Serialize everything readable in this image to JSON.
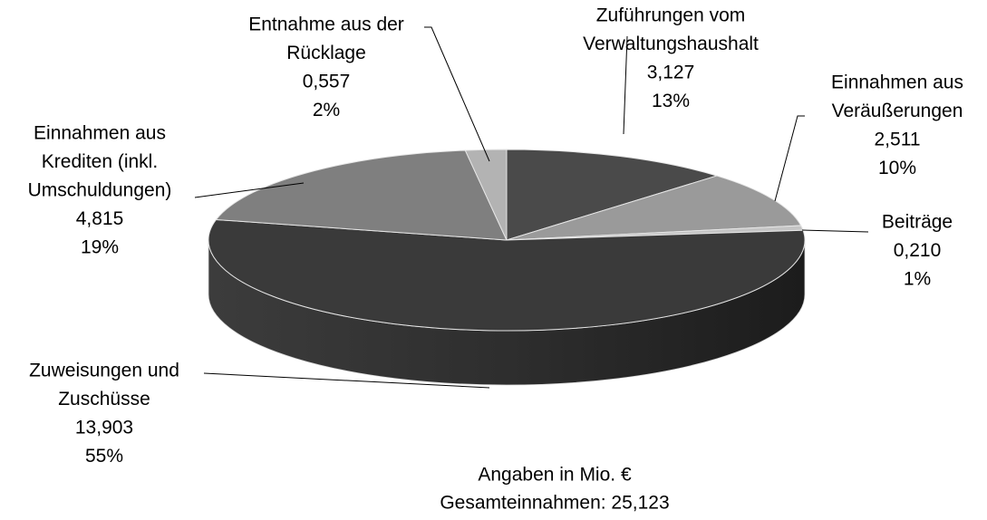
{
  "chart_data": {
    "type": "pie3d",
    "categories": [
      [
        "Zuführungen vom",
        "Verwaltungshaushalt"
      ],
      [
        "Einnahmen aus",
        "Veräußerungen"
      ],
      [
        "Beiträge"
      ],
      [
        "Zuweisungen und",
        "Zuschüsse"
      ],
      [
        "Einnahmen aus",
        "Krediten (inkl.",
        "Umschuldungen)"
      ],
      [
        "Entnahme aus der",
        "Rücklage"
      ]
    ],
    "values": [
      3.127,
      2.511,
      0.21,
      13.903,
      4.815,
      0.557
    ],
    "value_labels": [
      "3,127",
      "2,511",
      "0,210",
      "13,903",
      "4,815",
      "0,557"
    ],
    "percents": [
      13,
      10,
      1,
      55,
      19,
      2
    ],
    "percent_labels": [
      "13%",
      "10%",
      "1%",
      "55%",
      "19%",
      "2%"
    ],
    "colors": [
      "#4a4a4a",
      "#9a9a9a",
      "#c4c4c4",
      "#3a3a3a",
      "#7f7f7f",
      "#b3b3b3"
    ],
    "annotations": [
      "Angaben in Mio. €",
      "Gesamteinnahmen: 25,123"
    ]
  }
}
